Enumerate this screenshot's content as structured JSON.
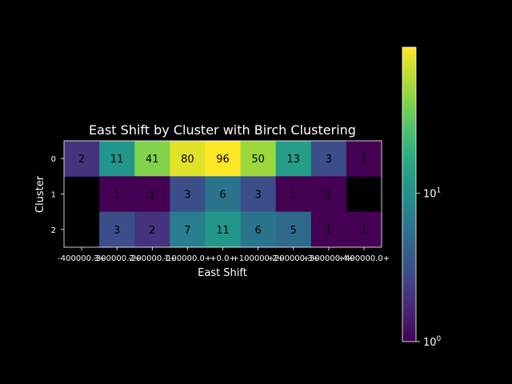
{
  "chart_data": {
    "type": "heatmap",
    "title": "East Shift by Cluster with Birch Clustering",
    "xlabel": "East Shift",
    "ylabel": "Cluster",
    "y_categories": [
      "0",
      "1",
      "2"
    ],
    "x_tick_labels": [
      "-400000.3+",
      "-300000.2+",
      "-200000.1+",
      "-100000.0+",
      "+0.0+",
      "+100000.2+",
      "+200000.3+",
      "+300000.4+",
      "+400000.0+"
    ],
    "values": [
      [
        2,
        11,
        41,
        80,
        96,
        50,
        13,
        3,
        1
      ],
      [
        null,
        1,
        1,
        3,
        6,
        3,
        1,
        1,
        null
      ],
      [
        null,
        3,
        2,
        7,
        11,
        6,
        5,
        1,
        1
      ]
    ],
    "color_scale": "log",
    "colormap": "viridis",
    "colorbar_range": [
      1,
      96
    ],
    "colorbar_ticks": [
      {
        "value": 1,
        "base": "10",
        "exp": "0"
      },
      {
        "value": 10,
        "base": "10",
        "exp": "1"
      }
    ],
    "background": "#000000",
    "text_color": "#ffffff",
    "cell_text_color": "#000000"
  }
}
